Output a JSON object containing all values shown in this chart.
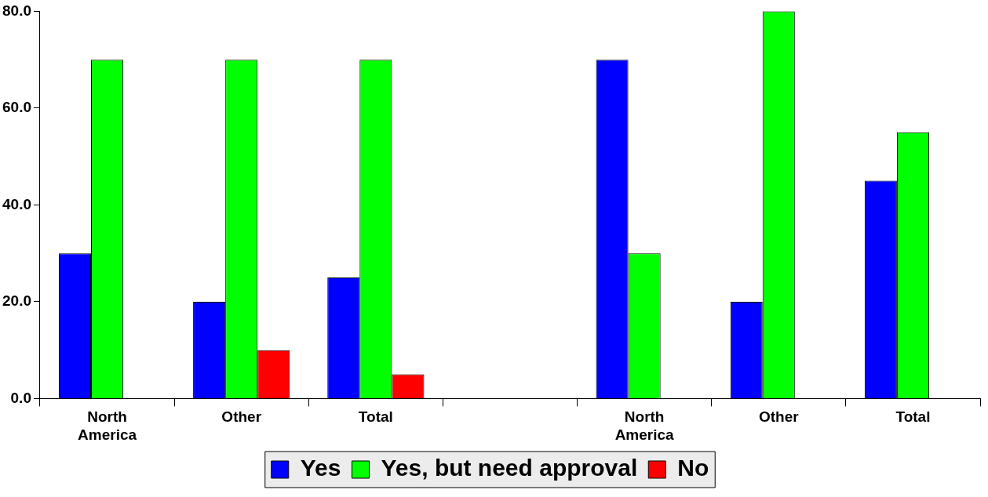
{
  "chart_data": {
    "type": "bar",
    "categories": [
      "North America",
      "Other",
      "Total",
      null,
      "North America",
      "Other",
      "Total"
    ],
    "series": [
      {
        "name": "Yes",
        "color": "#0000ff",
        "values": [
          30,
          20,
          25,
          null,
          70,
          20,
          45
        ]
      },
      {
        "name": "Yes, but need approval",
        "color": "#00ff00",
        "values": [
          70,
          70,
          70,
          null,
          30,
          80,
          55
        ]
      },
      {
        "name": "No",
        "color": "#ff0000",
        "values": [
          null,
          10,
          5,
          null,
          null,
          null,
          null
        ]
      }
    ],
    "ylim": [
      0,
      80
    ],
    "yticks": [
      {
        "value": 0,
        "label": "0.0"
      },
      {
        "value": 20,
        "label": "20.0"
      },
      {
        "value": 40,
        "label": "40.0"
      },
      {
        "value": 60,
        "label": "60.0"
      },
      {
        "value": 80,
        "label": "80.0"
      }
    ],
    "grid": false,
    "legend": "bottom"
  }
}
